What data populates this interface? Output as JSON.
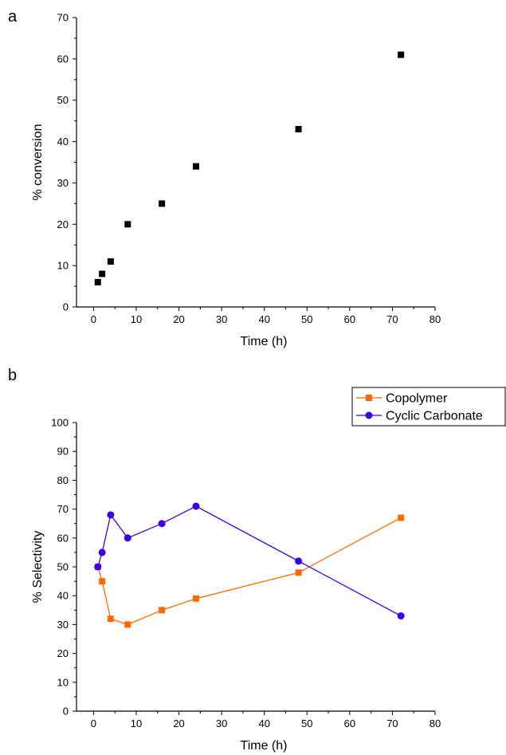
{
  "chart_data": [
    {
      "panel": "a",
      "type": "scatter",
      "title": "",
      "xlabel": "Time (h)",
      "ylabel": "% conversion",
      "xlim": [
        -4,
        80
      ],
      "ylim": [
        0,
        70
      ],
      "xticks": [
        0,
        10,
        20,
        30,
        40,
        50,
        60,
        70,
        80
      ],
      "yticks": [
        0,
        10,
        20,
        30,
        40,
        50,
        60,
        70
      ],
      "series": [
        {
          "x": [
            1,
            2,
            4,
            8,
            16,
            24,
            48,
            72
          ],
          "y": [
            6,
            8,
            11,
            20,
            25,
            34,
            43,
            61
          ],
          "color": "#000000",
          "marker": "square"
        }
      ],
      "grid": false
    },
    {
      "panel": "b",
      "type": "line",
      "title": "",
      "xlabel": "Time (h)",
      "ylabel": "% Selectivity",
      "xlim": [
        -4,
        80
      ],
      "ylim": [
        0,
        100
      ],
      "xticks": [
        0,
        10,
        20,
        30,
        40,
        50,
        60,
        70,
        80
      ],
      "yticks": [
        0,
        10,
        20,
        30,
        40,
        50,
        60,
        70,
        80,
        90,
        100
      ],
      "legend_position": "top-right",
      "series": [
        {
          "name": "Copolymer",
          "x": [
            1,
            2,
            4,
            8,
            16,
            24,
            48,
            72
          ],
          "y": [
            50,
            45,
            32,
            30,
            35,
            39,
            48,
            67
          ],
          "color": "#FF6A00",
          "marker": "square"
        },
        {
          "name": "Cyclic Carbonate",
          "x": [
            1,
            2,
            4,
            8,
            16,
            24,
            48,
            72
          ],
          "y": [
            50,
            55,
            68,
            60,
            65,
            71,
            52,
            33
          ],
          "color": "#3A00E6",
          "marker": "circle"
        }
      ],
      "grid": false
    }
  ]
}
